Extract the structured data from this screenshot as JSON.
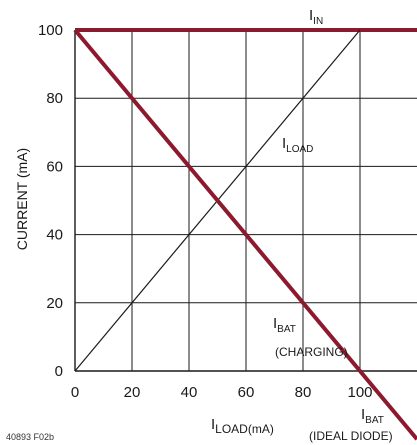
{
  "chart_data": {
    "type": "line",
    "ylabel": "CURRENT (mA)",
    "xlabel_main": "I",
    "xlabel_sub": "LOAD(mA)",
    "xlim": [
      0,
      120
    ],
    "ylim": [
      0,
      100
    ],
    "x_ticks": [
      0,
      20,
      40,
      60,
      80,
      100
    ],
    "y_ticks": [
      0,
      20,
      40,
      60,
      80,
      100
    ],
    "grid": true,
    "colors": {
      "grid": "#1a1a1a",
      "primary": "#8b1a2f",
      "secondary": "#1a1a1a"
    },
    "series": [
      {
        "label_main": "I",
        "label_sub": "IN",
        "emphasis": "primary",
        "x": [
          0,
          120
        ],
        "y": [
          100,
          100
        ]
      },
      {
        "label_main": "I",
        "label_sub": "LOAD",
        "emphasis": "secondary",
        "x": [
          0,
          100
        ],
        "y": [
          0,
          100
        ]
      },
      {
        "label_main": "I",
        "label_sub": "BAT",
        "emphasis": "primary",
        "x": [
          0,
          120
        ],
        "y": [
          100,
          -20
        ]
      }
    ],
    "annotations": {
      "charging": "(CHARGING)",
      "ideal_diode": "(IDEAL DIODE)"
    },
    "figure_code": "40893 F02b"
  }
}
